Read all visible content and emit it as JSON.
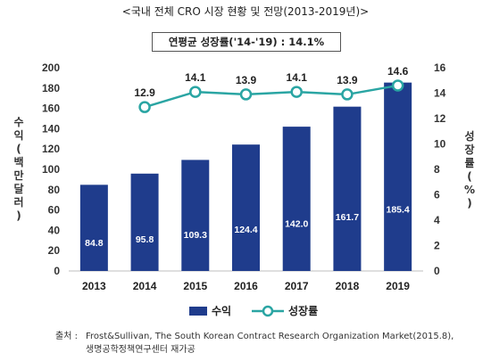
{
  "title": "<국내 전체 CRO 시장 현황 및 전망(2013-2019년)>",
  "cagr_box": "연평균 성장률('14-'19) : 14.1%",
  "chart_data": {
    "type": "bar",
    "categories": [
      "2013",
      "2014",
      "2015",
      "2016",
      "2017",
      "2018",
      "2019"
    ],
    "series": [
      {
        "name": "수익",
        "type": "bar",
        "axis": "left",
        "values": [
          84.8,
          95.8,
          109.3,
          124.4,
          142.0,
          161.7,
          185.4
        ],
        "labels": [
          "84.8",
          "95.8",
          "109.3",
          "124.4",
          "142.0",
          "161.7",
          "185.4"
        ],
        "color": "#1f3c8c"
      },
      {
        "name": "성장률",
        "type": "line",
        "axis": "right",
        "values": [
          null,
          12.9,
          14.1,
          13.9,
          14.1,
          13.9,
          14.6
        ],
        "labels": [
          "",
          "12.9",
          "14.1",
          "13.9",
          "14.1",
          "13.9",
          "14.6"
        ],
        "color": "#2aa5a3"
      }
    ],
    "ylabel": "수익(백만달러)",
    "y2label": "성장률(%)",
    "ylim": [
      0,
      200
    ],
    "y2lim": [
      0,
      16
    ],
    "yticks": [
      "0",
      "20",
      "40",
      "60",
      "80",
      "100",
      "120",
      "140",
      "160",
      "180",
      "200"
    ],
    "y2ticks": [
      "0",
      "2",
      "4",
      "6",
      "8",
      "10",
      "12",
      "14",
      "16"
    ],
    "grid": false,
    "legend": "bottom"
  },
  "source": {
    "lead": "출처 :",
    "line1": "Frost&Sullivan, The South Korean Contract Research Organization Market(2015.8),",
    "line2": "생명공학정책연구센터 재가공"
  }
}
